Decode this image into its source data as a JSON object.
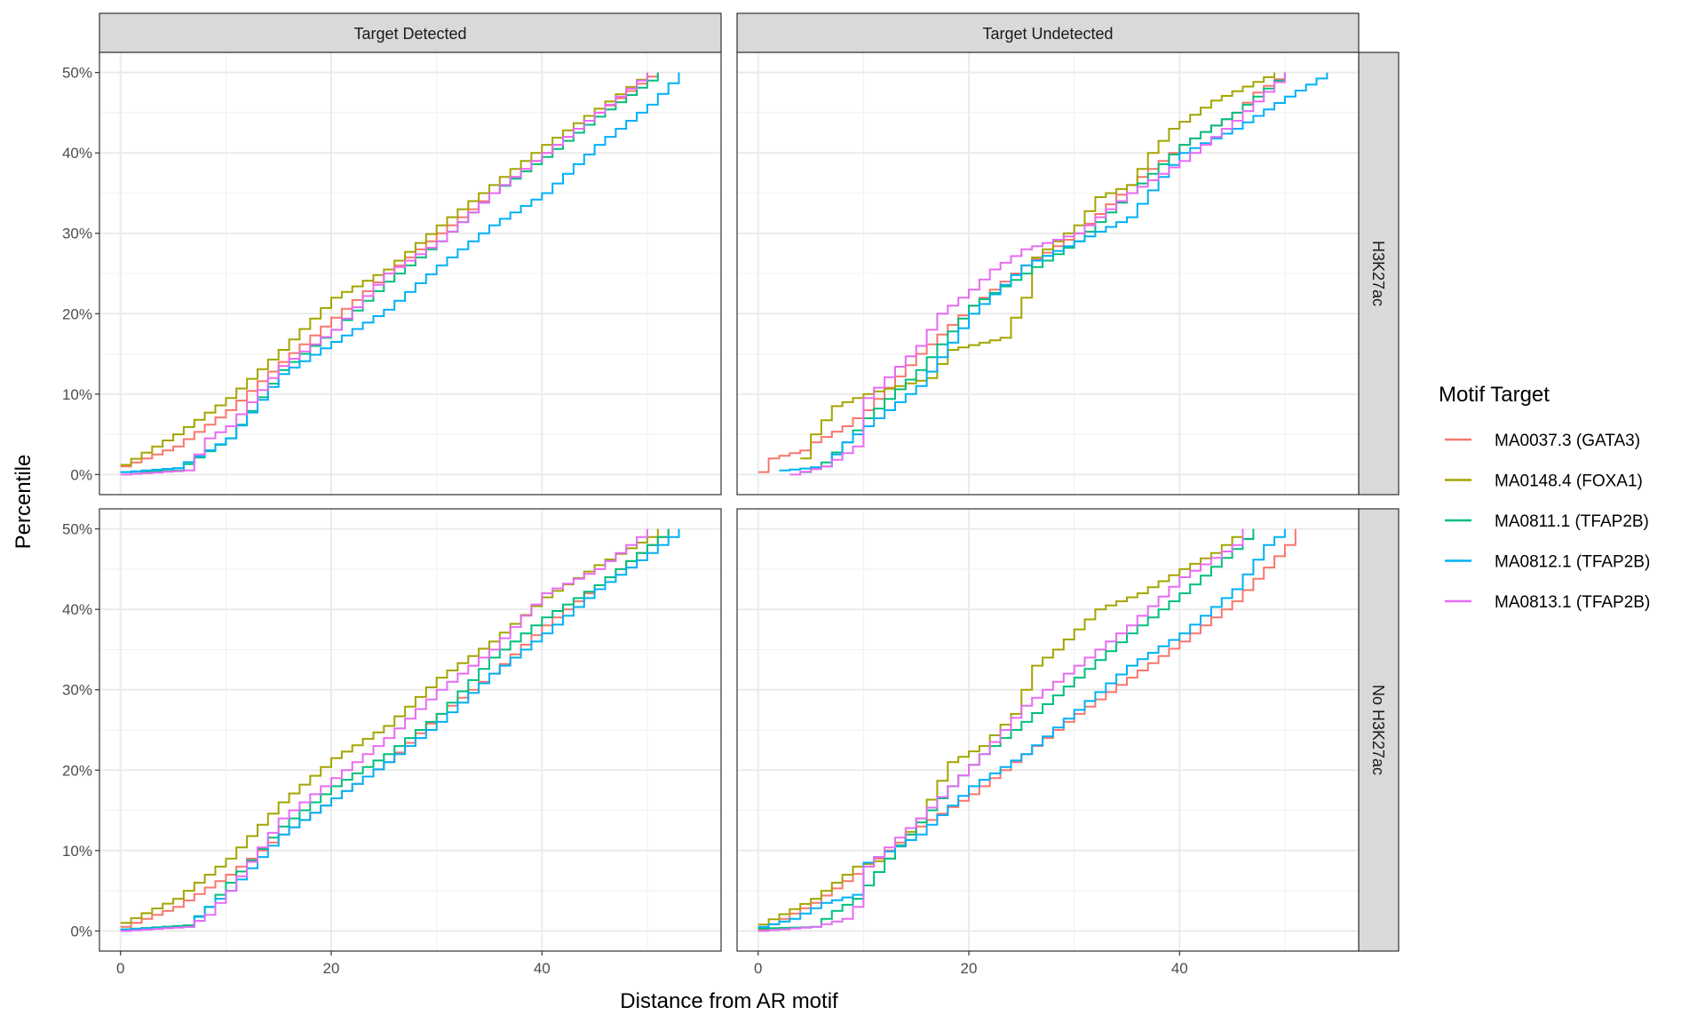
{
  "chart_data": {
    "type": "line",
    "step": true,
    "xlabel": "Distance from AR motif",
    "ylabel": "Percentile",
    "x_ticks": [
      0,
      20,
      40
    ],
    "y_ticks": [
      "0%",
      "10%",
      "20%",
      "30%",
      "40%",
      "50%"
    ],
    "xlim": [
      -2,
      57
    ],
    "ylim": [
      -2.5,
      52.5
    ],
    "grid": true,
    "legend": {
      "title": "Motif Target",
      "placement": "right"
    },
    "columns": [
      "Target Detected",
      "Target Undetected"
    ],
    "rows": [
      "H3K27ac",
      "No H3K27ac"
    ],
    "series_meta": [
      {
        "name": "MA0037.3 (GATA3)",
        "color": "#F8766D"
      },
      {
        "name": "MA0148.4 (FOXA1)",
        "color": "#A3A500"
      },
      {
        "name": "MA0811.1 (TFAP2B)",
        "color": "#00BF7D"
      },
      {
        "name": "MA0812.1 (TFAP2B)",
        "color": "#00B0F6"
      },
      {
        "name": "MA0813.1 (TFAP2B)",
        "color": "#E76BF3"
      }
    ],
    "panels": [
      {
        "column": "Target Detected",
        "row": "H3K27ac",
        "series": [
          [
            [
              0,
              1
            ],
            [
              5,
              3.5
            ],
            [
              10,
              8
            ],
            [
              15,
              14
            ],
            [
              20,
              19.5
            ],
            [
              25,
              25
            ],
            [
              30,
              30
            ],
            [
              35,
              35
            ],
            [
              40,
              40
            ],
            [
              45,
              45
            ],
            [
              50,
              49.5
            ],
            [
              51,
              50
            ]
          ],
          [
            [
              0,
              1.2
            ],
            [
              5,
              5
            ],
            [
              10,
              9.5
            ],
            [
              15,
              15.5
            ],
            [
              20,
              22
            ],
            [
              25,
              25.5
            ],
            [
              30,
              31
            ],
            [
              35,
              36
            ],
            [
              40,
              41
            ],
            [
              45,
              45.5
            ],
            [
              50,
              50
            ]
          ],
          [
            [
              0,
              0.3
            ],
            [
              5,
              0.5
            ],
            [
              10,
              4.5
            ],
            [
              15,
              13
            ],
            [
              20,
              18
            ],
            [
              25,
              24
            ],
            [
              30,
              29
            ],
            [
              35,
              35
            ],
            [
              40,
              39.5
            ],
            [
              45,
              44.5
            ],
            [
              50,
              49
            ],
            [
              51,
              50
            ]
          ],
          [
            [
              0,
              0.3
            ],
            [
              5,
              0.8
            ],
            [
              10,
              4.5
            ],
            [
              15,
              12.5
            ],
            [
              20,
              16.5
            ],
            [
              25,
              20.5
            ],
            [
              30,
              26
            ],
            [
              35,
              31
            ],
            [
              40,
              35
            ],
            [
              45,
              41
            ],
            [
              50,
              46
            ],
            [
              53,
              50
            ]
          ],
          [
            [
              0,
              0
            ],
            [
              6,
              0.5
            ],
            [
              8,
              4.5
            ],
            [
              10,
              6
            ],
            [
              15,
              13.5
            ],
            [
              20,
              18
            ],
            [
              25,
              25
            ],
            [
              30,
              29
            ],
            [
              35,
              35
            ],
            [
              40,
              40
            ],
            [
              45,
              45
            ],
            [
              50,
              50
            ]
          ]
        ]
      },
      {
        "column": "Target Undetected",
        "row": "H3K27ac",
        "series": [
          [
            [
              0,
              0.3
            ],
            [
              1,
              2
            ],
            [
              4,
              3
            ],
            [
              5,
              4
            ],
            [
              8,
              6
            ],
            [
              10,
              8
            ],
            [
              15,
              15
            ],
            [
              20,
              21
            ],
            [
              25,
              26
            ],
            [
              30,
              30
            ],
            [
              35,
              36
            ],
            [
              40,
              41
            ],
            [
              45,
              45
            ],
            [
              47,
              47.5
            ],
            [
              50,
              50
            ]
          ],
          [
            [
              4,
              2
            ],
            [
              5,
              5
            ],
            [
              7,
              8.5
            ],
            [
              10,
              10
            ],
            [
              16,
              12
            ],
            [
              18,
              15.5
            ],
            [
              23,
              17
            ],
            [
              25,
              22
            ],
            [
              26,
              27
            ],
            [
              30,
              31
            ],
            [
              32,
              34.5
            ],
            [
              35,
              36
            ],
            [
              37,
              40
            ],
            [
              39,
              43
            ],
            [
              43,
              46.5
            ],
            [
              49,
              50
            ]
          ],
          [
            [
              4,
              0.3
            ],
            [
              6,
              1.5
            ],
            [
              8,
              4
            ],
            [
              10,
              7
            ],
            [
              15,
              13
            ],
            [
              20,
              21
            ],
            [
              25,
              25
            ],
            [
              30,
              29
            ],
            [
              35,
              35
            ],
            [
              40,
              41
            ],
            [
              45,
              45
            ],
            [
              50,
              50
            ]
          ],
          [
            [
              2,
              0.5
            ],
            [
              6,
              1
            ],
            [
              8,
              4
            ],
            [
              10,
              6
            ],
            [
              15,
              11
            ],
            [
              20,
              20
            ],
            [
              25,
              26
            ],
            [
              30,
              29
            ],
            [
              35,
              32
            ],
            [
              38,
              37
            ],
            [
              40,
              40
            ],
            [
              45,
              43
            ],
            [
              50,
              47
            ],
            [
              54,
              50
            ]
          ],
          [
            [
              3,
              0
            ],
            [
              6,
              1
            ],
            [
              9,
              3.5
            ],
            [
              10,
              9.5
            ],
            [
              15,
              16
            ],
            [
              17,
              20
            ],
            [
              20,
              23
            ],
            [
              22,
              25.5
            ],
            [
              25,
              28
            ],
            [
              30,
              30
            ],
            [
              35,
              35
            ],
            [
              40,
              39
            ],
            [
              45,
              44
            ],
            [
              50,
              50
            ]
          ]
        ]
      },
      {
        "column": "Target Detected",
        "row": "No H3K27ac",
        "series": [
          [
            [
              0,
              0.5
            ],
            [
              5,
              3
            ],
            [
              10,
              7
            ],
            [
              15,
              12
            ],
            [
              20,
              16.5
            ],
            [
              25,
              21
            ],
            [
              30,
              27
            ],
            [
              35,
              32
            ],
            [
              40,
              38
            ],
            [
              45,
              43
            ],
            [
              50,
              48
            ],
            [
              52,
              50
            ]
          ],
          [
            [
              0,
              1
            ],
            [
              5,
              4
            ],
            [
              10,
              9
            ],
            [
              15,
              16
            ],
            [
              20,
              21.5
            ],
            [
              25,
              25.5
            ],
            [
              30,
              31.5
            ],
            [
              35,
              36
            ],
            [
              40,
              41.5
            ],
            [
              45,
              45.5
            ],
            [
              50,
              49
            ],
            [
              51,
              50
            ]
          ],
          [
            [
              0,
              0.2
            ],
            [
              6,
              0.7
            ],
            [
              8,
              3
            ],
            [
              10,
              6
            ],
            [
              15,
              13
            ],
            [
              20,
              18
            ],
            [
              25,
              22
            ],
            [
              30,
              27
            ],
            [
              35,
              34
            ],
            [
              40,
              39
            ],
            [
              45,
              43
            ],
            [
              50,
              48
            ],
            [
              52,
              50
            ]
          ],
          [
            [
              0,
              0.2
            ],
            [
              6,
              0.5
            ],
            [
              8,
              3
            ],
            [
              10,
              5
            ],
            [
              15,
              12
            ],
            [
              20,
              16.5
            ],
            [
              25,
              21
            ],
            [
              30,
              26
            ],
            [
              35,
              32
            ],
            [
              40,
              37
            ],
            [
              45,
              42.5
            ],
            [
              50,
              47
            ],
            [
              53,
              50
            ]
          ],
          [
            [
              0,
              0
            ],
            [
              6,
              0.5
            ],
            [
              8,
              2
            ],
            [
              10,
              5
            ],
            [
              15,
              14
            ],
            [
              20,
              19
            ],
            [
              25,
              24
            ],
            [
              30,
              30
            ],
            [
              35,
              35
            ],
            [
              40,
              42
            ],
            [
              45,
              45
            ],
            [
              50,
              50
            ]
          ]
        ]
      },
      {
        "column": "Target Undetected",
        "row": "No H3K27ac",
        "series": [
          [
            [
              0,
              0.2
            ],
            [
              2,
              1.5
            ],
            [
              5,
              3.5
            ],
            [
              10,
              8
            ],
            [
              15,
              13
            ],
            [
              20,
              17
            ],
            [
              25,
              22
            ],
            [
              30,
              27
            ],
            [
              35,
              31.5
            ],
            [
              40,
              36
            ],
            [
              45,
              41
            ],
            [
              50,
              48
            ],
            [
              51,
              50
            ]
          ],
          [
            [
              0,
              0.8
            ],
            [
              5,
              4
            ],
            [
              9,
              8
            ],
            [
              12,
              9
            ],
            [
              15,
              14
            ],
            [
              18,
              21
            ],
            [
              21,
              23
            ],
            [
              24,
              27
            ],
            [
              26,
              33
            ],
            [
              28,
              35
            ],
            [
              32,
              40
            ],
            [
              36,
              42
            ],
            [
              40,
              45
            ],
            [
              43,
              47
            ],
            [
              46,
              50
            ]
          ],
          [
            [
              0,
              0.3
            ],
            [
              5,
              0.5
            ],
            [
              7,
              2.5
            ],
            [
              9,
              4
            ],
            [
              12,
              9
            ],
            [
              15,
              13.5
            ],
            [
              18,
              18
            ],
            [
              21,
              22
            ],
            [
              25,
              26
            ],
            [
              30,
              31.5
            ],
            [
              35,
              37
            ],
            [
              40,
              42
            ],
            [
              45,
              47.5
            ],
            [
              47,
              50
            ]
          ],
          [
            [
              0,
              0.5
            ],
            [
              3,
              1.5
            ],
            [
              6,
              3.5
            ],
            [
              9,
              4.5
            ],
            [
              10,
              8.5
            ],
            [
              15,
              12
            ],
            [
              20,
              18
            ],
            [
              25,
              22
            ],
            [
              30,
              27.5
            ],
            [
              35,
              33
            ],
            [
              40,
              37
            ],
            [
              45,
              42.5
            ],
            [
              48,
              48
            ],
            [
              50,
              50
            ]
          ],
          [
            [
              0,
              0
            ],
            [
              5,
              0.5
            ],
            [
              8,
              1.5
            ],
            [
              9,
              3
            ],
            [
              10,
              8
            ],
            [
              15,
              14
            ],
            [
              18,
              18
            ],
            [
              21,
              22
            ],
            [
              25,
              28
            ],
            [
              30,
              33
            ],
            [
              35,
              38
            ],
            [
              40,
              44
            ],
            [
              45,
              48
            ],
            [
              46,
              50
            ]
          ]
        ]
      }
    ]
  }
}
